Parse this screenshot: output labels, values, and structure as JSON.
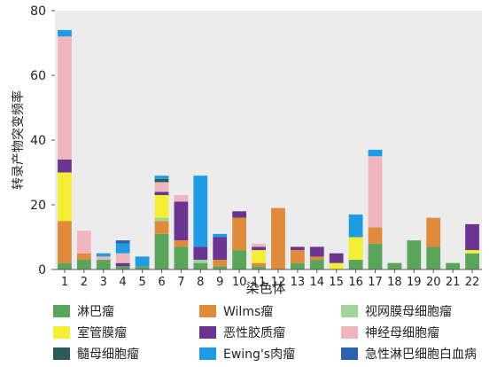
{
  "chart_data": {
    "type": "bar",
    "stacked": true,
    "xlabel": "染色体",
    "ylabel": "转录产物突变频率",
    "ylim": [
      0,
      80
    ],
    "yticks": [
      0,
      20,
      40,
      60,
      80
    ],
    "grid": false,
    "background": "#ececec",
    "legend_position": "bottom",
    "categories": [
      "1",
      "2",
      "3",
      "4",
      "5",
      "6",
      "7",
      "8",
      "9",
      "10",
      "11",
      "12",
      "13",
      "14",
      "15",
      "16",
      "17",
      "18",
      "19",
      "20",
      "21",
      "22"
    ],
    "series": [
      {
        "name": "淋巴瘤",
        "color": "#5aa55a",
        "values": [
          2,
          3,
          3,
          1,
          1,
          11,
          7,
          2,
          1,
          6,
          1,
          0,
          2,
          3,
          0,
          3,
          8,
          2,
          9,
          7,
          2,
          5
        ]
      },
      {
        "name": "Wilms瘤",
        "color": "#e08a3c",
        "values": [
          13,
          2,
          0,
          0,
          0,
          4,
          2,
          0,
          2,
          10,
          1,
          19,
          4,
          1,
          0,
          0,
          5,
          0,
          0,
          9,
          0,
          0
        ]
      },
      {
        "name": "视网膜母细胞瘤",
        "color": "#9fd49a",
        "values": [
          0,
          0,
          0,
          0,
          0,
          1,
          0,
          1,
          0,
          0,
          0,
          0,
          0,
          0,
          0,
          0,
          0,
          0,
          0,
          0,
          0,
          0
        ]
      },
      {
        "name": "室管膜瘤",
        "color": "#f2ef35",
        "values": [
          15,
          0,
          0,
          0,
          0,
          7,
          0,
          0,
          0,
          0,
          4,
          0,
          0,
          0,
          2,
          7,
          0,
          0,
          0,
          0,
          0,
          1
        ]
      },
      {
        "name": "恶性胶质瘤",
        "color": "#6a3591",
        "values": [
          4,
          0,
          0,
          1,
          0,
          1,
          12,
          4,
          7,
          2,
          1,
          0,
          1,
          3,
          3,
          0,
          0,
          0,
          0,
          0,
          0,
          8
        ]
      },
      {
        "name": "神经母细胞瘤",
        "color": "#f0b6c0",
        "values": [
          38,
          7,
          1,
          3,
          0,
          3,
          2,
          0,
          0,
          0,
          1,
          0,
          0,
          0,
          0,
          0,
          22,
          0,
          0,
          0,
          0,
          0
        ]
      },
      {
        "name": "髓母细胞瘤",
        "color": "#2a5a5a",
        "values": [
          0,
          0,
          0,
          0,
          0,
          1,
          0,
          0,
          0,
          0,
          0,
          0,
          0,
          0,
          0,
          0,
          0,
          0,
          0,
          0,
          0,
          0
        ]
      },
      {
        "name": "Ewing's肉瘤",
        "color": "#1f9be3",
        "values": [
          2,
          0,
          1,
          3,
          3,
          1,
          0,
          22,
          1,
          0,
          0,
          0,
          0,
          0,
          0,
          7,
          2,
          0,
          0,
          0,
          0,
          0
        ]
      },
      {
        "name": "急性淋巴细胞白血病",
        "color": "#2b63b0",
        "values": [
          0,
          0,
          0,
          1,
          0,
          0,
          0,
          0,
          0,
          0,
          0,
          0,
          0,
          0,
          0,
          0,
          0,
          0,
          0,
          0,
          0,
          0
        ]
      }
    ]
  }
}
